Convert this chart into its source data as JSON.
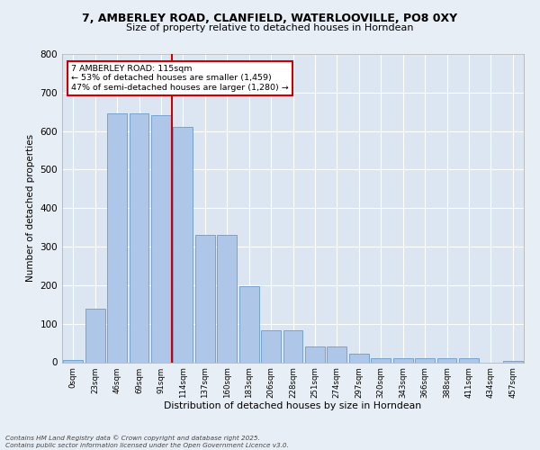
{
  "title_line1": "7, AMBERLEY ROAD, CLANFIELD, WATERLOOVILLE, PO8 0XY",
  "title_line2": "Size of property relative to detached houses in Horndean",
  "xlabel": "Distribution of detached houses by size in Horndean",
  "ylabel": "Number of detached properties",
  "bin_labels": [
    "0sqm",
    "23sqm",
    "46sqm",
    "69sqm",
    "91sqm",
    "114sqm",
    "137sqm",
    "160sqm",
    "183sqm",
    "206sqm",
    "228sqm",
    "251sqm",
    "274sqm",
    "297sqm",
    "320sqm",
    "343sqm",
    "366sqm",
    "388sqm",
    "411sqm",
    "434sqm",
    "457sqm"
  ],
  "bar_heights": [
    5,
    140,
    645,
    645,
    640,
    610,
    330,
    330,
    198,
    82,
    82,
    40,
    40,
    22,
    10,
    10,
    10,
    10,
    10,
    0,
    3
  ],
  "bar_color": "#aec6e8",
  "bar_edge_color": "#5a8fc0",
  "annotation_text": "7 AMBERLEY ROAD: 115sqm\n← 53% of detached houses are smaller (1,459)\n47% of semi-detached houses are larger (1,280) →",
  "annotation_box_color": "#ffffff",
  "annotation_box_edge_color": "#cc0000",
  "annotation_text_color": "#000000",
  "vline_color": "#cc0000",
  "background_color": "#e8eef5",
  "plot_bg_color": "#dce6f2",
  "grid_color": "#ffffff",
  "footer_text": "Contains HM Land Registry data © Crown copyright and database right 2025.\nContains public sector information licensed under the Open Government Licence v3.0.",
  "ylim": [
    0,
    800
  ],
  "yticks": [
    0,
    100,
    200,
    300,
    400,
    500,
    600,
    700,
    800
  ],
  "vline_x": 4.5
}
